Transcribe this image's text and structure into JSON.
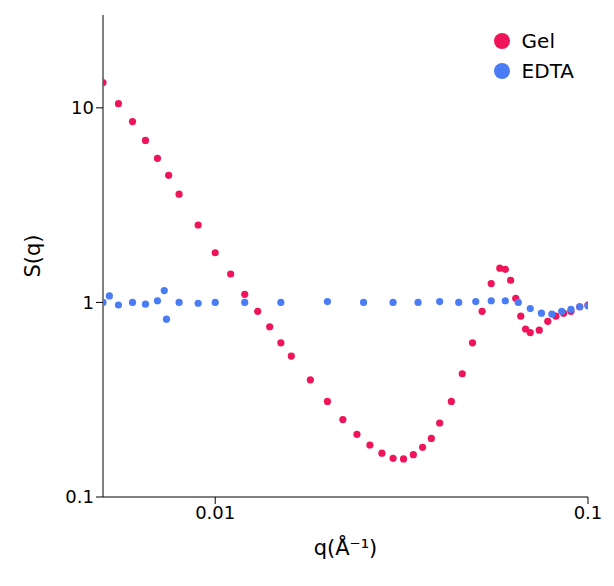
{
  "chart_data": {
    "type": "scatter",
    "x_label": "q(Å⁻¹)",
    "y_label": "S(q)",
    "log": true,
    "grid": false,
    "legend": "top right",
    "xlim": [
      0.005,
      0.1
    ],
    "xticks": [
      0.01,
      0.1
    ],
    "ylim": [
      0.1,
      30
    ],
    "yticks": [
      0.1,
      1,
      10
    ],
    "series": [
      {
        "name": "Gel",
        "color": "#f0145a",
        "marker": "circle",
        "x": [
          0.005,
          0.0055,
          0.006,
          0.0065,
          0.007,
          0.0075,
          0.008,
          0.009,
          0.01,
          0.011,
          0.012,
          0.013,
          0.014,
          0.015,
          0.016,
          0.018,
          0.02,
          0.022,
          0.024,
          0.026,
          0.028,
          0.03,
          0.032,
          0.034,
          0.036,
          0.038,
          0.04,
          0.043,
          0.046,
          0.049,
          0.052,
          0.055,
          0.058,
          0.06,
          0.062,
          0.064,
          0.066,
          0.068,
          0.07,
          0.074,
          0.078,
          0.082,
          0.086,
          0.09,
          0.095,
          0.1
        ],
        "values": [
          13.5,
          10.5,
          8.5,
          6.8,
          5.5,
          4.5,
          3.6,
          2.5,
          1.8,
          1.4,
          1.1,
          0.9,
          0.75,
          0.62,
          0.53,
          0.4,
          0.31,
          0.25,
          0.21,
          0.185,
          0.168,
          0.158,
          0.157,
          0.165,
          0.18,
          0.2,
          0.24,
          0.31,
          0.43,
          0.62,
          0.9,
          1.25,
          1.5,
          1.48,
          1.3,
          1.05,
          0.85,
          0.73,
          0.7,
          0.72,
          0.8,
          0.85,
          0.88,
          0.9,
          0.95,
          0.97
        ]
      },
      {
        "name": "EDTA",
        "color": "#4a7cf5",
        "marker": "circle",
        "x": [
          0.005,
          0.0052,
          0.0055,
          0.006,
          0.0065,
          0.007,
          0.0073,
          0.0074,
          0.008,
          0.009,
          0.01,
          0.012,
          0.015,
          0.02,
          0.025,
          0.03,
          0.035,
          0.04,
          0.045,
          0.05,
          0.055,
          0.06,
          0.065,
          0.07,
          0.075,
          0.08,
          0.085,
          0.09,
          0.095,
          0.1
        ],
        "values": [
          1.0,
          1.08,
          0.97,
          1.0,
          0.98,
          1.02,
          1.15,
          0.82,
          1.0,
          0.99,
          1.0,
          1.0,
          1.0,
          1.01,
          1.0,
          1.0,
          1.0,
          1.01,
          1.0,
          1.01,
          1.02,
          1.02,
          1.0,
          0.93,
          0.88,
          0.87,
          0.9,
          0.92,
          0.95,
          0.96
        ]
      }
    ]
  }
}
